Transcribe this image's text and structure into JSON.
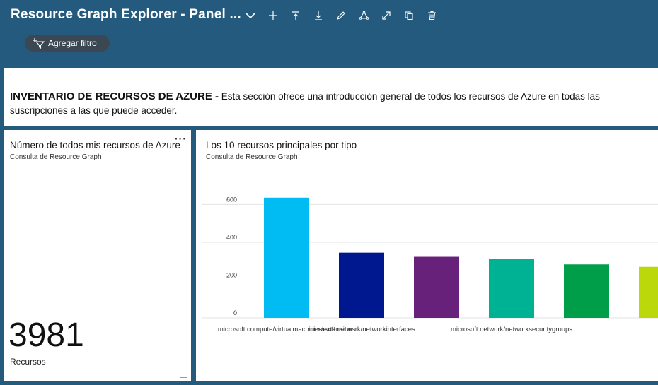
{
  "header": {
    "title": "Resource Graph Explorer - Panel ...",
    "toolbar": [
      {
        "name": "chevron-down-icon",
        "glyph": "⌄"
      },
      {
        "name": "add-icon",
        "glyph": "+"
      },
      {
        "name": "upload-icon",
        "glyph": "⤒"
      },
      {
        "name": "download-icon",
        "glyph": "⤓"
      },
      {
        "name": "edit-icon",
        "glyph": "✎"
      },
      {
        "name": "share-icon",
        "glyph": "♲"
      },
      {
        "name": "fullscreen-icon",
        "glyph": "⤢"
      },
      {
        "name": "clone-icon",
        "glyph": "⧉"
      },
      {
        "name": "delete-icon",
        "glyph": "🗑"
      }
    ],
    "add_filter_label": "Agregar filtro"
  },
  "intro": {
    "heading": "INVENTARIO DE RECURSOS DE AZURE -",
    "text": "Esta sección ofrece una introducción general de todos los recursos de Azure en todas las suscripciones a las que puede acceder."
  },
  "count_tile": {
    "title": "Número de todos mis recursos de Azure",
    "subtitle": "Consulta de Resource Graph",
    "more_label": "···",
    "value": "3981",
    "unit": "Recursos"
  },
  "chart_tile": {
    "title": "Los 10 recursos principales por tipo",
    "subtitle": "Consulta de Resource Graph"
  },
  "chart_data": {
    "type": "bar",
    "categories": [
      "microsoft.compute/virtualmachines/extensions",
      "microsoft.network/networkinterfaces",
      "",
      "microsoft.network/networksecuritygroups",
      "",
      ""
    ],
    "values": [
      636,
      345,
      323,
      313,
      283,
      270
    ],
    "colors": [
      "#00bcf2",
      "#00188f",
      "#68217a",
      "#00b294",
      "#009e49",
      "#bad80a"
    ],
    "yticks": [
      0,
      200,
      400,
      600
    ],
    "ylim": [
      0,
      680
    ],
    "grid": true
  }
}
